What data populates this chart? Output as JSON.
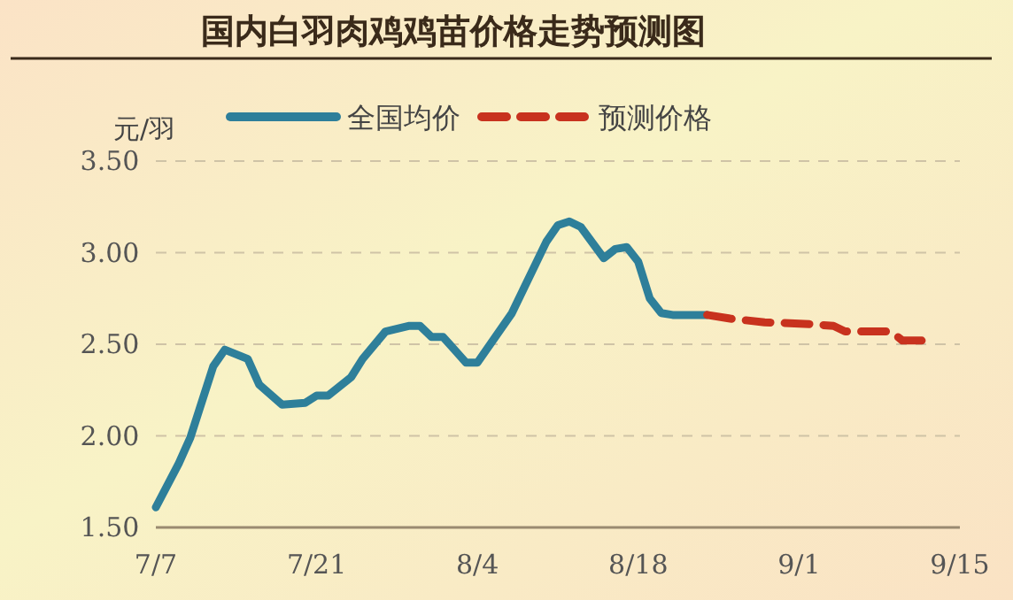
{
  "chart_data": {
    "type": "line",
    "title": "国内白羽肉鸡鸡苗价格走势预测图",
    "ylabel": "元/羽",
    "xlim": [
      "--07-07",
      "--09-15"
    ],
    "xticks": [
      {
        "value": "--07-07",
        "label": "7/7"
      },
      {
        "value": "--07-21",
        "label": "7/21"
      },
      {
        "value": "--08-04",
        "label": "8/4"
      },
      {
        "value": "--08-18",
        "label": "8/18"
      },
      {
        "value": "--09-01",
        "label": "9/1"
      },
      {
        "value": "--09-15",
        "label": "9/15"
      }
    ],
    "ylim": [
      1.5,
      3.5
    ],
    "yticks": [
      {
        "value": 1.5,
        "label": "1.50"
      },
      {
        "value": 2,
        "label": "2.00"
      },
      {
        "value": 2.5,
        "label": "2.50"
      },
      {
        "value": 3,
        "label": "3.00"
      },
      {
        "value": 3.5,
        "label": "3.50"
      }
    ],
    "grid": "y",
    "legend": "top",
    "marker": "none",
    "series": [
      {
        "name": "全国均价",
        "color": "#2e7f9a",
        "line_style": "solid",
        "x": [
          "--07-07",
          "--07-09",
          "--07-10",
          "--07-12",
          "--07-13",
          "--07-15",
          "--07-16",
          "--07-18",
          "--07-20",
          "--07-21",
          "--07-22",
          "--07-24",
          "--07-25",
          "--07-27",
          "--07-29",
          "--07-30",
          "--07-31",
          "--08-01",
          "--08-03",
          "--08-04",
          "--08-07",
          "--08-10",
          "--08-11",
          "--08-12",
          "--08-13",
          "--08-15",
          "--08-16",
          "--08-17",
          "--08-18",
          "--08-19",
          "--08-20",
          "--08-21",
          "--08-24"
        ],
        "values": [
          1.61,
          1.85,
          1.99,
          2.38,
          2.47,
          2.42,
          2.28,
          2.17,
          2.18,
          2.22,
          2.22,
          2.32,
          2.42,
          2.57,
          2.6,
          2.6,
          2.54,
          2.54,
          2.4,
          2.4,
          2.67,
          3.06,
          3.15,
          3.17,
          3.14,
          2.97,
          3.02,
          3.03,
          2.95,
          2.75,
          2.67,
          2.66,
          2.66
        ]
      },
      {
        "name": "预测价格",
        "color": "#c8321e",
        "line_style": "dashed",
        "x": [
          "--08-24",
          "--08-26",
          "--08-29",
          "--09-02",
          "--09-04",
          "--09-05",
          "--09-09",
          "--09-10",
          "--09-12"
        ],
        "values": [
          2.66,
          2.64,
          2.62,
          2.61,
          2.6,
          2.57,
          2.57,
          2.52,
          2.52
        ]
      }
    ]
  }
}
